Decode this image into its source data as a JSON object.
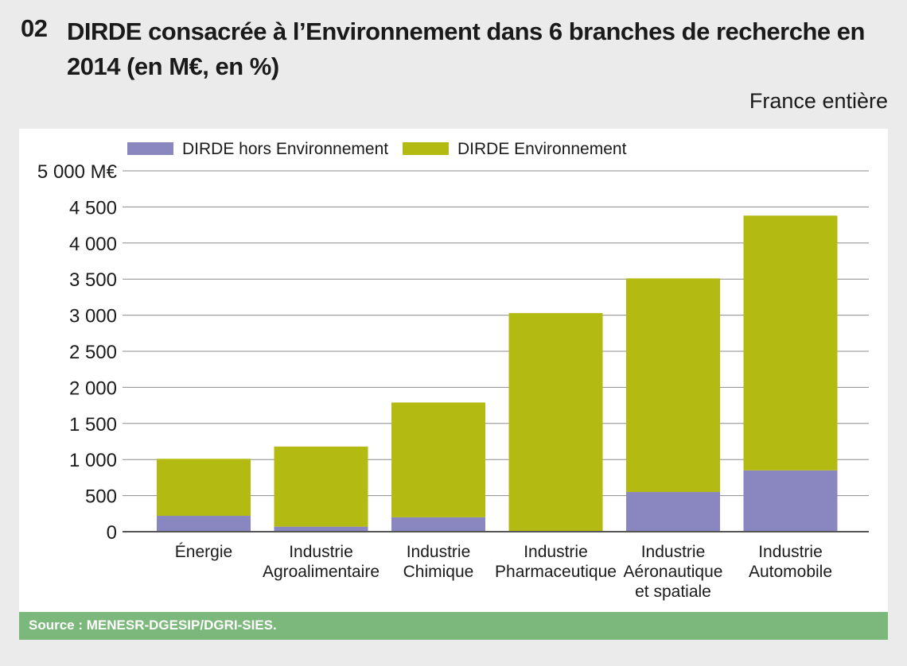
{
  "figure": {
    "number": "02",
    "title": "DIRDE consacrée à l’Environnement dans 6 branches de recherche en 2014 (en M€, en %)",
    "scope": "France entière",
    "source": "Source : MENESR-DGESIP/DGRI-SIES."
  },
  "colors": {
    "hors_environnement": "#8a86c0",
    "environnement": "#b3ba12",
    "source_bar": "#7cb87c"
  },
  "chart_data": {
    "type": "bar",
    "stacked": true,
    "title": "DIRDE consacrée à l’Environnement dans 6 branches de recherche en 2014 (en M€, en %)",
    "ylabel": "M€",
    "ylim": [
      0,
      5000
    ],
    "yticks": [
      0,
      500,
      1000,
      1500,
      2000,
      2500,
      3000,
      3500,
      4000,
      4500,
      5000
    ],
    "ytick_labels": [
      "0",
      "500",
      "1 000",
      "1 500",
      "2 000",
      "2 500",
      "3 000",
      "3 500",
      "4 000",
      "4 500",
      "5 000 M€"
    ],
    "grid": true,
    "legend_position": "top-left",
    "categories": [
      [
        "Énergie"
      ],
      [
        "Industrie",
        "Agroalimentaire"
      ],
      [
        "Industrie",
        "Chimique"
      ],
      [
        "Industrie",
        "Pharmaceutique"
      ],
      [
        "Industrie",
        "Aéronautique",
        "et spatiale"
      ],
      [
        "Industrie",
        "Automobile"
      ]
    ],
    "series": [
      {
        "name": "DIRDE hors Environnement",
        "values": [
          220,
          70,
          200,
          10,
          550,
          850
        ]
      },
      {
        "name": "DIRDE Environnement",
        "values": [
          790,
          1110,
          1590,
          3020,
          2960,
          3530
        ]
      }
    ]
  }
}
